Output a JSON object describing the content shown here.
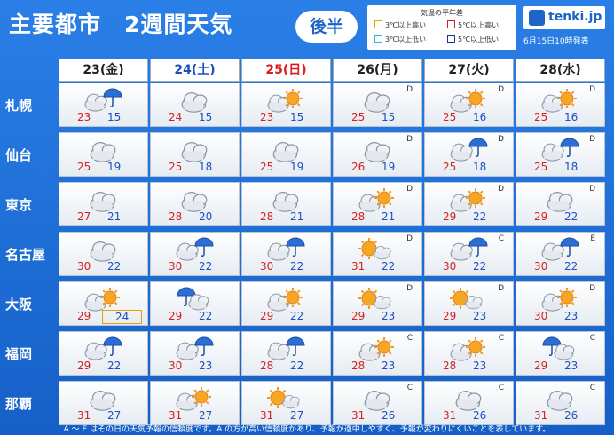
{
  "header": {
    "title": "主要都市　2週間天気",
    "half": "後半",
    "legend": {
      "title": "気温の平年差",
      "items": [
        {
          "label": "3℃以上高い",
          "color": "#e8a000"
        },
        {
          "label": "5℃以上高い",
          "color": "#d81e1e"
        },
        {
          "label": "3℃以上低い",
          "color": "#29b6e6"
        },
        {
          "label": "5℃以上低い",
          "color": "#1e2fa0"
        }
      ]
    },
    "logo": "tenki.jp",
    "issued": "6月15日10時発表"
  },
  "days": [
    {
      "label": "23(金)",
      "color": "#222222"
    },
    {
      "label": "24(土)",
      "color": "#1e4fc0"
    },
    {
      "label": "25(日)",
      "color": "#d81e1e"
    },
    {
      "label": "26(月)",
      "color": "#222222"
    },
    {
      "label": "27(火)",
      "color": "#222222"
    },
    {
      "label": "28(水)",
      "color": "#222222"
    }
  ],
  "cities": [
    {
      "name": "札幌",
      "cells": [
        {
          "icon": "cloud-rain",
          "hi": "23",
          "lo": "15",
          "rel": ""
        },
        {
          "icon": "cloud",
          "hi": "24",
          "lo": "15",
          "rel": ""
        },
        {
          "icon": "cloud-sun",
          "hi": "23",
          "lo": "15",
          "rel": ""
        },
        {
          "icon": "cloud",
          "hi": "25",
          "lo": "15",
          "rel": "D"
        },
        {
          "icon": "cloud-sun",
          "hi": "25",
          "lo": "16",
          "rel": "D"
        },
        {
          "icon": "cloud-sun",
          "hi": "25",
          "lo": "16",
          "rel": "D"
        }
      ]
    },
    {
      "name": "仙台",
      "cells": [
        {
          "icon": "cloud",
          "hi": "25",
          "lo": "19",
          "rel": ""
        },
        {
          "icon": "cloud",
          "hi": "25",
          "lo": "18",
          "rel": ""
        },
        {
          "icon": "cloud",
          "hi": "25",
          "lo": "19",
          "rel": ""
        },
        {
          "icon": "cloud",
          "hi": "26",
          "lo": "19",
          "rel": "D"
        },
        {
          "icon": "cloud-rain",
          "hi": "25",
          "lo": "18",
          "rel": "D"
        },
        {
          "icon": "cloud-rain",
          "hi": "25",
          "lo": "18",
          "rel": "D"
        }
      ]
    },
    {
      "name": "東京",
      "cells": [
        {
          "icon": "cloud",
          "hi": "27",
          "lo": "21",
          "rel": ""
        },
        {
          "icon": "cloud",
          "hi": "28",
          "lo": "20",
          "rel": ""
        },
        {
          "icon": "cloud",
          "hi": "28",
          "lo": "21",
          "rel": ""
        },
        {
          "icon": "cloud-sun",
          "hi": "28",
          "lo": "21",
          "rel": "D"
        },
        {
          "icon": "cloud-sun",
          "hi": "29",
          "lo": "22",
          "rel": "D"
        },
        {
          "icon": "cloud",
          "hi": "29",
          "lo": "22",
          "rel": "D"
        }
      ]
    },
    {
      "name": "名古屋",
      "cells": [
        {
          "icon": "cloud",
          "hi": "30",
          "lo": "22",
          "rel": ""
        },
        {
          "icon": "cloud-rain",
          "hi": "30",
          "lo": "22",
          "rel": ""
        },
        {
          "icon": "cloud-rain",
          "hi": "30",
          "lo": "22",
          "rel": ""
        },
        {
          "icon": "sun-cloud",
          "hi": "31",
          "lo": "22",
          "rel": "D"
        },
        {
          "icon": "cloud-rain",
          "hi": "30",
          "lo": "22",
          "rel": "C"
        },
        {
          "icon": "cloud-rain",
          "hi": "30",
          "lo": "22",
          "rel": "E"
        }
      ]
    },
    {
      "name": "大阪",
      "cells": [
        {
          "icon": "cloud-sun",
          "hi": "29",
          "lo": "24",
          "rel": "",
          "boxed": true
        },
        {
          "icon": "rain-cloud",
          "hi": "29",
          "lo": "22",
          "rel": ""
        },
        {
          "icon": "cloud-sun",
          "hi": "29",
          "lo": "22",
          "rel": ""
        },
        {
          "icon": "sun-cloud",
          "hi": "29",
          "lo": "23",
          "rel": "D"
        },
        {
          "icon": "sun-cloud",
          "hi": "29",
          "lo": "23",
          "rel": "D"
        },
        {
          "icon": "cloud-sun",
          "hi": "30",
          "lo": "23",
          "rel": "D"
        }
      ]
    },
    {
      "name": "福岡",
      "cells": [
        {
          "icon": "cloud-rain",
          "hi": "29",
          "lo": "22",
          "rel": ""
        },
        {
          "icon": "cloud-rain",
          "hi": "30",
          "lo": "23",
          "rel": ""
        },
        {
          "icon": "cloud-rain",
          "hi": "28",
          "lo": "22",
          "rel": ""
        },
        {
          "icon": "cloud-sun",
          "hi": "28",
          "lo": "23",
          "rel": "C"
        },
        {
          "icon": "cloud-sun",
          "hi": "28",
          "lo": "23",
          "rel": "C"
        },
        {
          "icon": "rain-cloud",
          "hi": "29",
          "lo": "23",
          "rel": "C"
        }
      ]
    },
    {
      "name": "那覇",
      "cells": [
        {
          "icon": "cloud",
          "hi": "31",
          "lo": "27",
          "rel": ""
        },
        {
          "icon": "cloud-sun",
          "hi": "31",
          "lo": "27",
          "rel": ""
        },
        {
          "icon": "sun-cloud",
          "hi": "31",
          "lo": "27",
          "rel": ""
        },
        {
          "icon": "cloud",
          "hi": "31",
          "lo": "26",
          "rel": "C"
        },
        {
          "icon": "cloud",
          "hi": "31",
          "lo": "26",
          "rel": "C"
        },
        {
          "icon": "cloud",
          "hi": "31",
          "lo": "26",
          "rel": "C"
        }
      ]
    }
  ],
  "footer": "A ～ E はその日の天気予報の信頼度です。A の方が高い信頼度があり、予報が適中しやすく、予報が変わりにくいことを表しています。"
}
